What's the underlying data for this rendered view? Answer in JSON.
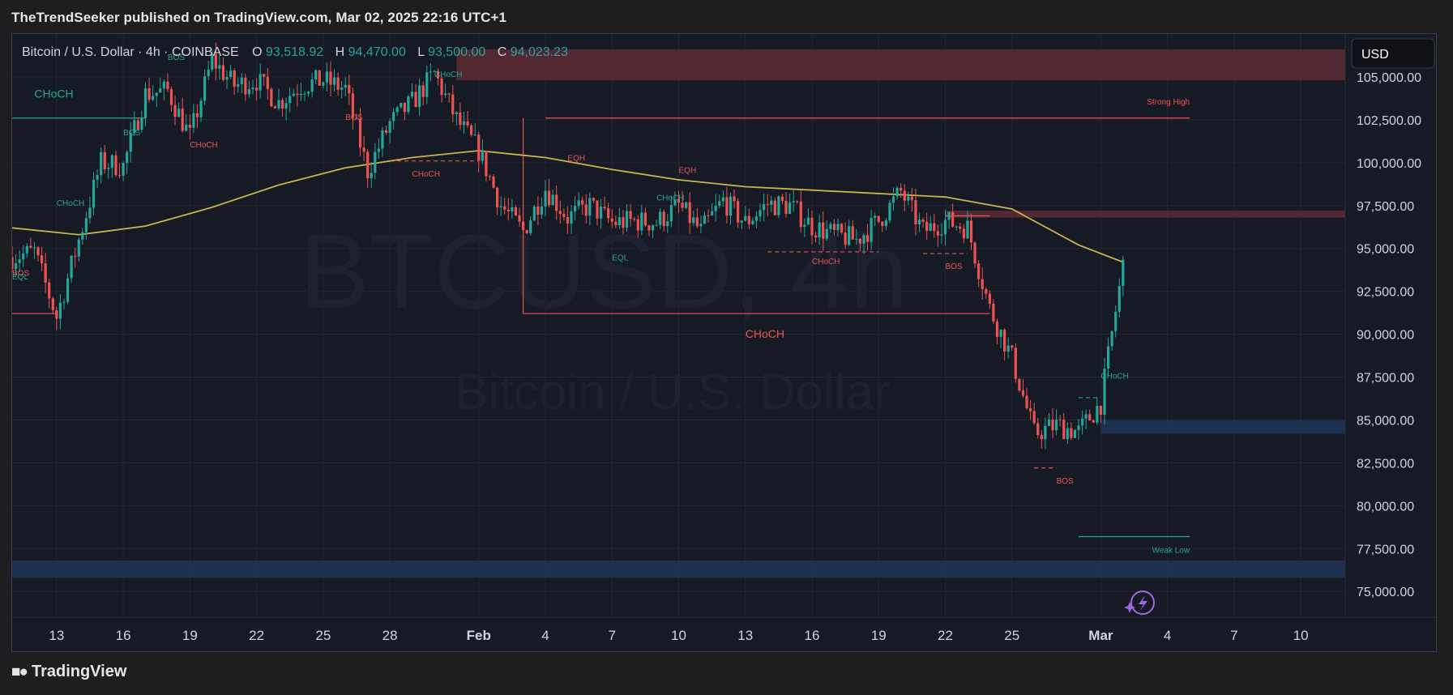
{
  "header": {
    "caption": "TheTrendSeeker published on TradingView.com, Mar 02, 2025 22:16 UTC+1"
  },
  "footer": {
    "brand": "TradingView"
  },
  "symbol_bar": {
    "name": "Bitcoin / U.S. Dollar · 4h · COINBASE",
    "open_label": "O",
    "open": "93,518.92",
    "high_label": "H",
    "high": "94,470.00",
    "low_label": "L",
    "low": "93,500.00",
    "close_label": "C",
    "close": "94,023.23"
  },
  "currency_button": "USD",
  "watermark": {
    "ticker": "BTCUSD, 4h",
    "name": "Bitcoin / U.S. Dollar"
  },
  "colors": {
    "background": "#161a25",
    "up": "#26a69a",
    "down": "#ef5350",
    "ma": "#c9b44b",
    "supply_zone": "#5a2a33",
    "demand_zone": "#1f3358",
    "grid": "#232733",
    "axis_text": "#d1d4dc"
  },
  "chart_data": {
    "type": "candlestick",
    "title": "Bitcoin / U.S. Dollar · 4h · COINBASE",
    "ylim": [
      73500,
      107500
    ],
    "y_ticks": [
      75000,
      77500,
      80000,
      82500,
      85000,
      87500,
      90000,
      92500,
      95000,
      97500,
      100000,
      102500,
      105000
    ],
    "y_tick_labels": [
      "75,000.00",
      "77,500.00",
      "80,000.00",
      "82,500.00",
      "85,000.00",
      "87,500.00",
      "90,000.00",
      "92,500.00",
      "95,000.00",
      "97,500.00",
      "100,000.00",
      "102,500.00",
      "105,000.00"
    ],
    "x_ticks": [
      "2025-01-13",
      "2025-01-16",
      "2025-01-19",
      "2025-01-22",
      "2025-01-25",
      "2025-01-28",
      "2025-02-01",
      "2025-02-04",
      "2025-02-07",
      "2025-02-10",
      "2025-02-13",
      "2025-02-16",
      "2025-02-19",
      "2025-02-22",
      "2025-02-25",
      "2025-03-01",
      "2025-03-04",
      "2025-03-07",
      "2025-03-10"
    ],
    "x_tick_labels": [
      "13",
      "16",
      "19",
      "22",
      "25",
      "28",
      "Feb",
      "4",
      "7",
      "10",
      "13",
      "16",
      "19",
      "22",
      "25",
      "Mar",
      "4",
      "7",
      "10"
    ],
    "xlim": [
      "2025-01-11",
      "2025-03-12"
    ],
    "close_series": [
      {
        "x": "2025-01-11",
        "y": 94500
      },
      {
        "x": "2025-01-12",
        "y": 94800
      },
      {
        "x": "2025-01-13",
        "y": 91000
      },
      {
        "x": "2025-01-14",
        "y": 95500
      },
      {
        "x": "2025-01-15",
        "y": 100000
      },
      {
        "x": "2025-01-16",
        "y": 99800
      },
      {
        "x": "2025-01-17",
        "y": 104000
      },
      {
        "x": "2025-01-18",
        "y": 104200
      },
      {
        "x": "2025-01-19",
        "y": 101500
      },
      {
        "x": "2025-01-20",
        "y": 106000
      },
      {
        "x": "2025-01-21",
        "y": 104500
      },
      {
        "x": "2025-01-22",
        "y": 104800
      },
      {
        "x": "2025-01-23",
        "y": 103500
      },
      {
        "x": "2025-01-24",
        "y": 104500
      },
      {
        "x": "2025-01-25",
        "y": 104800
      },
      {
        "x": "2025-01-26",
        "y": 104300
      },
      {
        "x": "2025-01-27",
        "y": 99500
      },
      {
        "x": "2025-01-28",
        "y": 102300
      },
      {
        "x": "2025-01-29",
        "y": 103500
      },
      {
        "x": "2025-01-30",
        "y": 105200
      },
      {
        "x": "2025-01-31",
        "y": 102500
      },
      {
        "x": "2025-02-01",
        "y": 100700
      },
      {
        "x": "2025-02-02",
        "y": 97500
      },
      {
        "x": "2025-02-03",
        "y": 96000
      },
      {
        "x": "2025-02-04",
        "y": 98500
      },
      {
        "x": "2025-02-05",
        "y": 96800
      },
      {
        "x": "2025-02-06",
        "y": 97500
      },
      {
        "x": "2025-02-07",
        "y": 96500
      },
      {
        "x": "2025-02-08",
        "y": 96600
      },
      {
        "x": "2025-02-09",
        "y": 96500
      },
      {
        "x": "2025-02-10",
        "y": 97500
      },
      {
        "x": "2025-02-11",
        "y": 96000
      },
      {
        "x": "2025-02-12",
        "y": 97800
      },
      {
        "x": "2025-02-13",
        "y": 96500
      },
      {
        "x": "2025-02-14",
        "y": 97600
      },
      {
        "x": "2025-02-15",
        "y": 97500
      },
      {
        "x": "2025-02-16",
        "y": 96300
      },
      {
        "x": "2025-02-17",
        "y": 95800
      },
      {
        "x": "2025-02-18",
        "y": 95500
      },
      {
        "x": "2025-02-19",
        "y": 96600
      },
      {
        "x": "2025-02-20",
        "y": 98300
      },
      {
        "x": "2025-02-21",
        "y": 96000
      },
      {
        "x": "2025-02-22",
        "y": 96600
      },
      {
        "x": "2025-02-23",
        "y": 96200
      },
      {
        "x": "2025-02-24",
        "y": 91500
      },
      {
        "x": "2025-02-25",
        "y": 88600
      },
      {
        "x": "2025-02-26",
        "y": 84200
      },
      {
        "x": "2025-02-27",
        "y": 84700
      },
      {
        "x": "2025-02-28",
        "y": 84300
      },
      {
        "x": "2025-03-01",
        "y": 86000
      },
      {
        "x": "2025-03-02",
        "y": 94023
      }
    ],
    "moving_average": [
      {
        "x": "2025-01-11",
        "y": 96200
      },
      {
        "x": "2025-01-14",
        "y": 95800
      },
      {
        "x": "2025-01-17",
        "y": 96300
      },
      {
        "x": "2025-01-20",
        "y": 97400
      },
      {
        "x": "2025-01-23",
        "y": 98700
      },
      {
        "x": "2025-01-26",
        "y": 99700
      },
      {
        "x": "2025-01-29",
        "y": 100300
      },
      {
        "x": "2025-02-01",
        "y": 100700
      },
      {
        "x": "2025-02-04",
        "y": 100300
      },
      {
        "x": "2025-02-07",
        "y": 99600
      },
      {
        "x": "2025-02-10",
        "y": 99000
      },
      {
        "x": "2025-02-13",
        "y": 98600
      },
      {
        "x": "2025-02-16",
        "y": 98400
      },
      {
        "x": "2025-02-19",
        "y": 98200
      },
      {
        "x": "2025-02-22",
        "y": 98000
      },
      {
        "x": "2025-02-25",
        "y": 97300
      },
      {
        "x": "2025-02-28",
        "y": 95200
      },
      {
        "x": "2025-03-02",
        "y": 94200
      }
    ],
    "zones": [
      {
        "kind": "supply",
        "x0": "2025-01-31",
        "x1": "2025-03-12",
        "y0": 104800,
        "y1": 106600
      },
      {
        "kind": "supply",
        "x0": "2025-02-22",
        "x1": "2025-03-12",
        "y0": 96800,
        "y1": 97200
      },
      {
        "kind": "demand",
        "x0": "2025-03-01",
        "x1": "2025-03-12",
        "y0": 84200,
        "y1": 85000
      },
      {
        "kind": "demand",
        "x0": "2025-01-11",
        "x1": "2025-03-12",
        "y0": 75800,
        "y1": 76800
      }
    ],
    "levels": [
      {
        "label": "Strong High",
        "price": 102600,
        "x0": "2025-02-04",
        "x1": "2025-03-05",
        "color": "down"
      },
      {
        "label": "Weak Low",
        "price": 78200,
        "x0": "2025-02-28",
        "x1": "2025-03-05",
        "color": "up"
      }
    ],
    "annotations": [
      {
        "text": "CHoCH",
        "x": "2025-01-12",
        "y": 103800,
        "color": "up",
        "size": "large"
      },
      {
        "text": "CHoCH",
        "x": "2025-02-13",
        "y": 89800,
        "color": "down",
        "size": "large"
      },
      {
        "text": "CHoCH",
        "x": "2025-01-13",
        "y": 97500,
        "color": "up"
      },
      {
        "text": "BOS",
        "x": "2025-01-11",
        "y": 93400,
        "color": "down"
      },
      {
        "text": "EQL",
        "x": "2025-01-11",
        "y": 93200,
        "color": "up"
      },
      {
        "text": "BOS",
        "x": "2025-01-16",
        "y": 101600,
        "color": "up"
      },
      {
        "text": "BOS",
        "x": "2025-01-18",
        "y": 106000,
        "color": "up"
      },
      {
        "text": "CHoCH",
        "x": "2025-01-19",
        "y": 100900,
        "color": "down"
      },
      {
        "text": "BOS",
        "x": "2025-01-26",
        "y": 102500,
        "color": "down"
      },
      {
        "text": "CHoCH",
        "x": "2025-01-30",
        "y": 105000,
        "color": "up"
      },
      {
        "text": "CHoCH",
        "x": "2025-01-29",
        "y": 99200,
        "color": "down"
      },
      {
        "text": "EQH",
        "x": "2025-02-05",
        "y": 100100,
        "color": "down"
      },
      {
        "text": "EQH",
        "x": "2025-02-10",
        "y": 99400,
        "color": "down"
      },
      {
        "text": "CHoCH",
        "x": "2025-02-09",
        "y": 97800,
        "color": "up"
      },
      {
        "text": "EQL",
        "x": "2025-02-07",
        "y": 94300,
        "color": "up"
      },
      {
        "text": "CHoCH",
        "x": "2025-02-16",
        "y": 94100,
        "color": "down"
      },
      {
        "text": "BOS",
        "x": "2025-02-22",
        "y": 93800,
        "color": "down"
      },
      {
        "text": "BOS",
        "x": "2025-02-27",
        "y": 81300,
        "color": "down"
      },
      {
        "text": "CHoCH",
        "x": "2025-02-29",
        "y": 87400,
        "color": "up"
      }
    ],
    "structure_lines": [
      {
        "price": 102600,
        "x0": "2025-01-11",
        "x1": "2025-01-17",
        "color": "up",
        "dash": false
      },
      {
        "price": 91200,
        "x0": "2025-01-11",
        "x1": "2025-01-13",
        "color": "down",
        "dash": false
      },
      {
        "price": 91200,
        "x0": "2025-02-03",
        "x1": "2025-02-24",
        "color": "down",
        "dash": false
      },
      {
        "price": 96900,
        "x0": "2025-02-22",
        "x1": "2025-02-24",
        "color": "down",
        "dash": false
      },
      {
        "price": 100100,
        "x0": "2025-01-28",
        "x1": "2025-02-01",
        "color": "down",
        "dash": true
      },
      {
        "price": 94800,
        "x0": "2025-02-14",
        "x1": "2025-02-19",
        "color": "down",
        "dash": true
      },
      {
        "price": 94700,
        "x0": "2025-02-21",
        "x1": "2025-02-23",
        "color": "down",
        "dash": true
      },
      {
        "price": 82200,
        "x0": "2025-02-26",
        "x1": "2025-02-27",
        "color": "down",
        "dash": true
      },
      {
        "price": 86300,
        "x0": "2025-02-28",
        "x1": "2025-03-01",
        "color": "up",
        "dash": true
      }
    ]
  }
}
